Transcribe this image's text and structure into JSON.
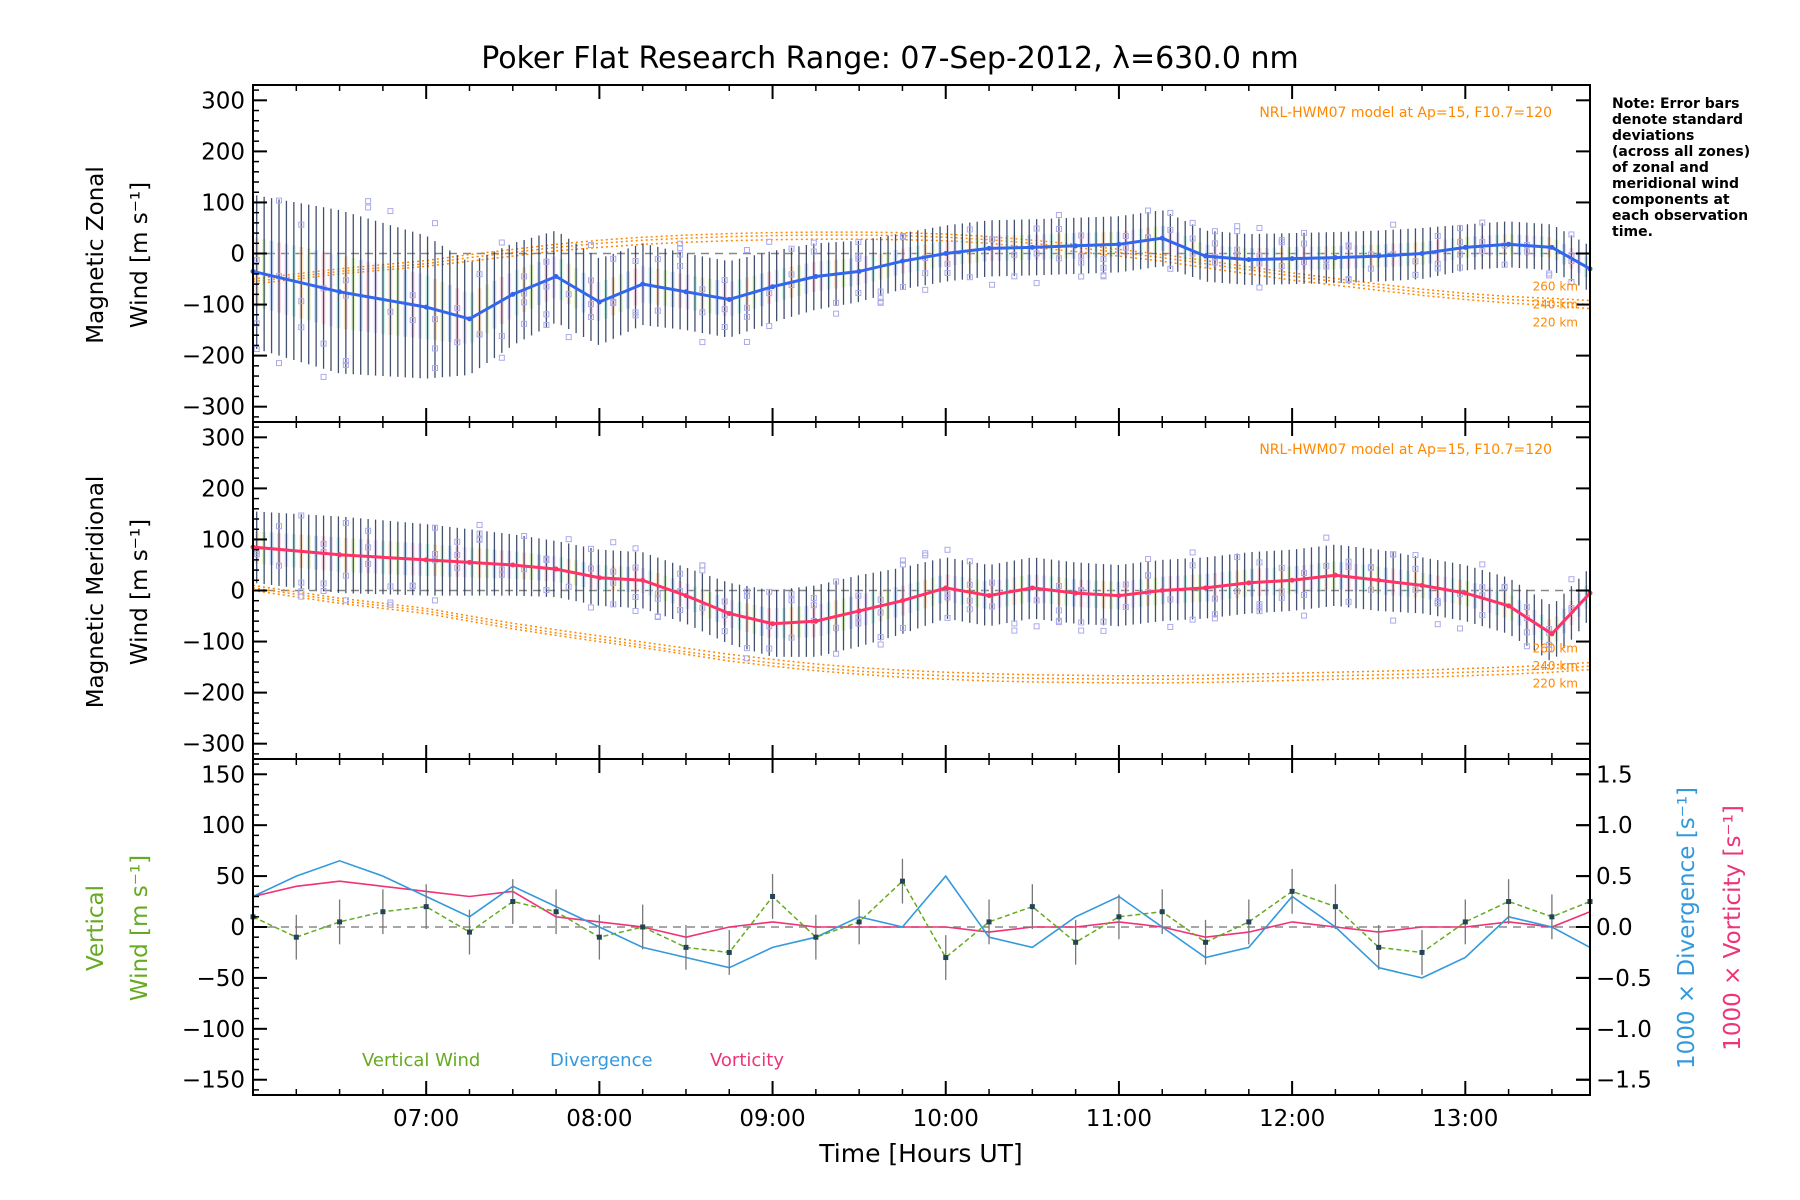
{
  "title": "Poker Flat Research Range: 07-Sep-2012, λ=630.0 nm",
  "xlabel": "Time [Hours UT]",
  "note_lines": [
    "Note: Error bars",
    "denote standard",
    "deviations",
    "(across all zones)",
    "of zonal and",
    "meridional wind",
    "components at",
    "each observation",
    "time."
  ],
  "colors": {
    "zonal_mean": "#3366ee",
    "meridional_mean": "#ff3366",
    "model": "#ff8800",
    "scatter": "#aaaaee",
    "vertical": "#66aa22",
    "divergence": "#3399dd",
    "vorticity": "#ee3377",
    "errorbar": "#223355"
  },
  "chart_data": [
    {
      "type": "line",
      "panel": "zonal",
      "ylabel_lines": [
        "Magnetic Zonal",
        "Wind [m s⁻¹]"
      ],
      "model_label": "NRL-HWM07 model at Ap=15, F10.7=120",
      "model_altitude_labels": [
        "260 km",
        "240 km",
        "220 km"
      ],
      "xlim": [
        6.0,
        13.72
      ],
      "ylim": [
        -330,
        330
      ],
      "yticks": [
        -300,
        -200,
        -100,
        0,
        100,
        200,
        300
      ],
      "x": [
        6.0,
        6.5,
        7.0,
        7.25,
        7.5,
        7.75,
        8.0,
        8.25,
        8.5,
        8.75,
        9.0,
        9.25,
        9.5,
        9.75,
        10.0,
        10.25,
        10.5,
        10.75,
        11.0,
        11.25,
        11.5,
        11.75,
        12.0,
        12.25,
        12.5,
        12.75,
        13.0,
        13.25,
        13.5,
        13.72
      ],
      "mean_wind": [
        -35,
        -75,
        -105,
        -128,
        -80,
        -45,
        -95,
        -60,
        -75,
        -90,
        -65,
        -45,
        -35,
        -15,
        0,
        10,
        12,
        15,
        18,
        30,
        -5,
        -12,
        -10,
        -8,
        -5,
        0,
        12,
        18,
        12,
        -30
      ],
      "error_halfwidth": [
        150,
        160,
        140,
        110,
        100,
        90,
        85,
        80,
        75,
        75,
        70,
        65,
        60,
        55,
        55,
        55,
        55,
        55,
        55,
        55,
        50,
        50,
        50,
        50,
        50,
        50,
        45,
        45,
        45,
        45
      ],
      "model_220": [
        -60,
        -40,
        -25,
        -15,
        -5,
        5,
        12,
        18,
        22,
        25,
        27,
        28,
        28,
        27,
        25,
        20,
        12,
        4,
        -5,
        -15,
        -28,
        -40,
        -52,
        -62,
        -72,
        -82,
        -90,
        -97,
        -102,
        -108
      ],
      "model_240": [
        -55,
        -35,
        -20,
        -8,
        2,
        12,
        20,
        26,
        30,
        33,
        35,
        36,
        36,
        35,
        32,
        27,
        20,
        12,
        2,
        -8,
        -20,
        -32,
        -44,
        -55,
        -66,
        -76,
        -84,
        -90,
        -95,
        -100
      ],
      "model_260": [
        -50,
        -30,
        -14,
        -2,
        8,
        18,
        26,
        32,
        36,
        39,
        41,
        42,
        42,
        41,
        38,
        33,
        26,
        18,
        8,
        -2,
        -14,
        -26,
        -38,
        -49,
        -60,
        -70,
        -78,
        -84,
        -88,
        -92
      ]
    },
    {
      "type": "line",
      "panel": "meridional",
      "ylabel_lines": [
        "Magnetic Meridional",
        "Wind [m s⁻¹]"
      ],
      "model_label": "NRL-HWM07 model at Ap=15, F10.7=120",
      "model_altitude_labels": [
        "260 km",
        "240 km",
        "220 km"
      ],
      "xlim": [
        6.0,
        13.72
      ],
      "ylim": [
        -330,
        330
      ],
      "yticks": [
        -300,
        -200,
        -100,
        0,
        100,
        200,
        300
      ],
      "x": [
        6.0,
        6.5,
        7.0,
        7.25,
        7.5,
        7.75,
        8.0,
        8.25,
        8.5,
        8.75,
        9.0,
        9.25,
        9.5,
        9.75,
        10.0,
        10.25,
        10.5,
        10.75,
        11.0,
        11.25,
        11.5,
        11.75,
        12.0,
        12.25,
        12.5,
        12.75,
        13.0,
        13.25,
        13.5,
        13.72
      ],
      "mean_wind": [
        85,
        70,
        60,
        55,
        50,
        42,
        25,
        20,
        -10,
        -45,
        -65,
        -60,
        -40,
        -20,
        5,
        -10,
        5,
        -5,
        -10,
        0,
        5,
        15,
        20,
        30,
        20,
        10,
        -5,
        -30,
        -85,
        -5
      ],
      "error_halfwidth": [
        70,
        75,
        70,
        65,
        60,
        55,
        55,
        55,
        55,
        60,
        65,
        70,
        70,
        65,
        60,
        60,
        60,
        60,
        60,
        60,
        60,
        60,
        60,
        60,
        60,
        55,
        55,
        55,
        55,
        50
      ],
      "model_220": [
        0,
        -25,
        -45,
        -60,
        -75,
        -88,
        -100,
        -112,
        -125,
        -138,
        -148,
        -157,
        -164,
        -170,
        -174,
        -177,
        -179,
        -180,
        -181,
        -181,
        -180,
        -178,
        -176,
        -174,
        -172,
        -170,
        -167,
        -164,
        -160,
        -155
      ],
      "model_240": [
        5,
        -20,
        -40,
        -55,
        -70,
        -83,
        -95,
        -107,
        -120,
        -132,
        -142,
        -151,
        -158,
        -163,
        -167,
        -170,
        -172,
        -173,
        -174,
        -174,
        -173,
        -171,
        -169,
        -167,
        -165,
        -163,
        -160,
        -157,
        -153,
        -148
      ],
      "model_260": [
        10,
        -15,
        -35,
        -50,
        -64,
        -77,
        -89,
        -101,
        -113,
        -125,
        -135,
        -144,
        -151,
        -156,
        -160,
        -163,
        -165,
        -166,
        -167,
        -167,
        -166,
        -164,
        -162,
        -160,
        -158,
        -156,
        -153,
        -150,
        -146,
        -141
      ]
    },
    {
      "type": "line",
      "panel": "vertical",
      "ylabel_lines": [
        "Vertical",
        "Wind [m s⁻¹]"
      ],
      "y2label_blue": "1000 × Divergence [s⁻¹]",
      "y2label_red": "1000 × Vorticity [s⁻¹]",
      "xlim": [
        6.0,
        13.72
      ],
      "ylim": [
        -165,
        165
      ],
      "yticks": [
        -150,
        -100,
        -50,
        0,
        50,
        100,
        150
      ],
      "y2lim": [
        -1.65,
        1.65
      ],
      "y2ticks": [
        -1.5,
        -1.0,
        -0.5,
        0.0,
        0.5,
        1.0,
        1.5
      ],
      "y2ticklabels": [
        "−1.5",
        "−1.0",
        "−0.5",
        "0.0",
        "0.5",
        "1.0",
        "1.5"
      ],
      "legend": [
        {
          "name": "Vertical Wind",
          "key": "vertical"
        },
        {
          "name": "Divergence",
          "key": "divergence"
        },
        {
          "name": "Vorticity",
          "key": "vorticity"
        }
      ],
      "x": [
        6.0,
        6.25,
        6.5,
        6.75,
        7.0,
        7.25,
        7.5,
        7.75,
        8.0,
        8.25,
        8.5,
        8.75,
        9.0,
        9.25,
        9.5,
        9.75,
        10.0,
        10.25,
        10.5,
        10.75,
        11.0,
        11.25,
        11.5,
        11.75,
        12.0,
        12.25,
        12.5,
        12.75,
        13.0,
        13.25,
        13.5,
        13.72
      ],
      "vertical_wind": [
        10,
        -10,
        5,
        15,
        20,
        -5,
        25,
        15,
        -10,
        0,
        -20,
        -25,
        30,
        -10,
        5,
        45,
        -30,
        5,
        20,
        -15,
        10,
        15,
        -15,
        5,
        35,
        20,
        -20,
        -25,
        5,
        25,
        10,
        25
      ],
      "divergence": [
        0.3,
        0.5,
        0.65,
        0.5,
        0.3,
        0.1,
        0.4,
        0.2,
        0.0,
        -0.2,
        -0.3,
        -0.4,
        -0.2,
        -0.1,
        0.1,
        0.0,
        0.5,
        -0.1,
        -0.2,
        0.1,
        0.3,
        0.0,
        -0.3,
        -0.2,
        0.3,
        0.0,
        -0.4,
        -0.5,
        -0.3,
        0.1,
        0.0,
        -0.2
      ],
      "vorticity": [
        0.3,
        0.4,
        0.45,
        0.4,
        0.35,
        0.3,
        0.35,
        0.1,
        0.05,
        0.0,
        -0.1,
        0.0,
        0.05,
        0.0,
        0.0,
        0.0,
        0.0,
        -0.05,
        0.0,
        0.0,
        0.05,
        0.0,
        -0.1,
        -0.05,
        0.05,
        0.0,
        -0.05,
        0.0,
        0.0,
        0.05,
        0.0,
        0.15
      ]
    }
  ],
  "xticks": [
    {
      "value": 7,
      "label": "07:00"
    },
    {
      "value": 8,
      "label": "08:00"
    },
    {
      "value": 9,
      "label": "09:00"
    },
    {
      "value": 10,
      "label": "10:00"
    },
    {
      "value": 11,
      "label": "11:00"
    },
    {
      "value": 12,
      "label": "12:00"
    },
    {
      "value": 13,
      "label": "13:00"
    }
  ]
}
